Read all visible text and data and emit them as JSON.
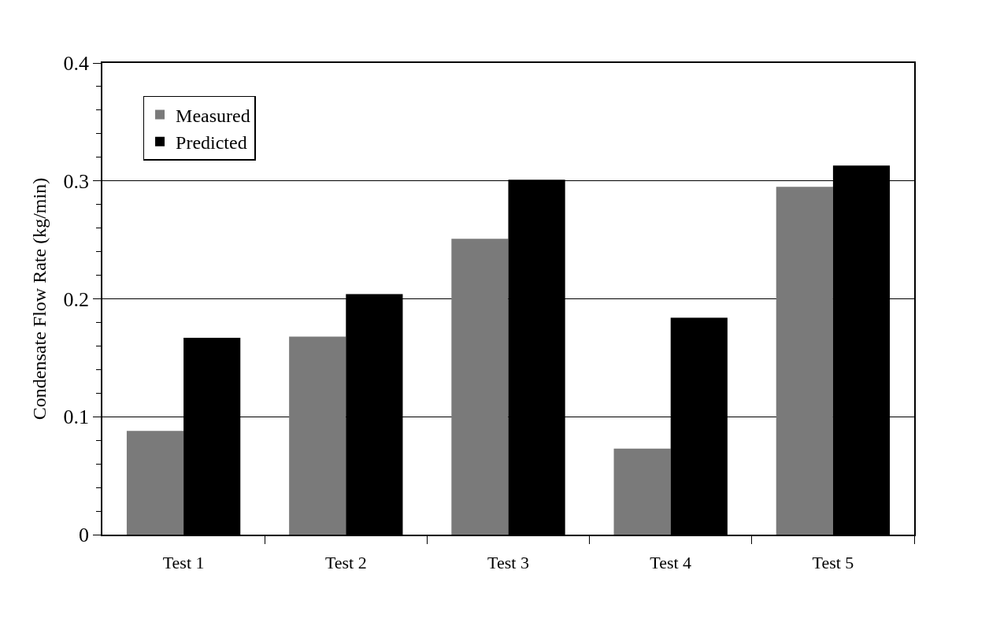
{
  "chart_data": {
    "type": "bar",
    "ylabel": "Condensate Flow Rate (kg/min)",
    "categories": [
      "Test 1",
      "Test 2",
      "Test 3",
      "Test 4",
      "Test 5"
    ],
    "series": [
      {
        "name": "Measured",
        "color": "#7a7a7a",
        "values": [
          0.088,
          0.168,
          0.251,
          0.073,
          0.295
        ]
      },
      {
        "name": "Predicted",
        "color": "#000000",
        "values": [
          0.167,
          0.204,
          0.301,
          0.184,
          0.313
        ]
      }
    ],
    "ylim": [
      0,
      0.4
    ],
    "yticks": [
      0,
      {
        "value": 0.02,
        "label": null
      },
      {
        "value": 0.04,
        "label": null
      },
      {
        "value": 0.06,
        "label": null
      },
      {
        "value": 0.08,
        "label": null
      },
      0.1,
      {
        "value": 0.12,
        "label": null
      },
      {
        "value": 0.14,
        "label": null
      },
      {
        "value": 0.16,
        "label": null
      },
      {
        "value": 0.18,
        "label": null
      },
      0.2,
      {
        "value": 0.22,
        "label": null
      },
      {
        "value": 0.24,
        "label": null
      },
      {
        "value": 0.26,
        "label": null
      },
      {
        "value": 0.28,
        "label": null
      },
      0.3,
      {
        "value": 0.32,
        "label": null
      },
      {
        "value": 0.34,
        "label": null
      },
      {
        "value": 0.36,
        "label": null
      },
      {
        "value": 0.38,
        "label": null
      },
      0.4
    ],
    "grid": "y",
    "legend": "top left"
  }
}
